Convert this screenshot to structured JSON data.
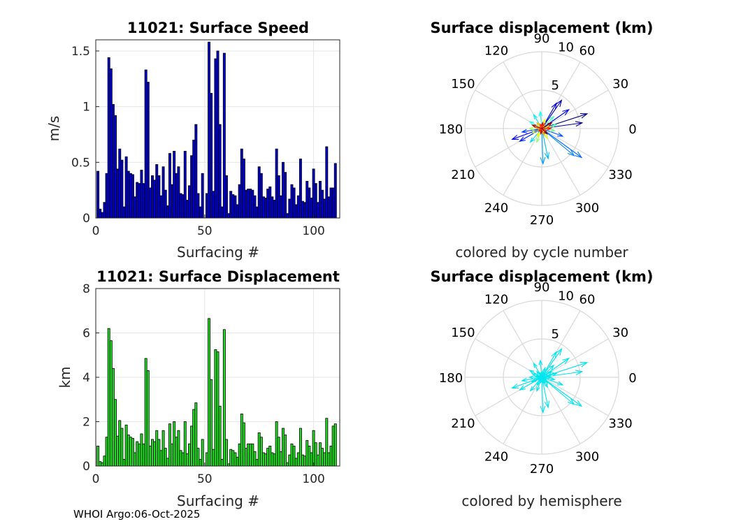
{
  "footer": "WHOI Argo:06-Oct-2025",
  "chart_data": [
    {
      "type": "bar",
      "title": "11021: Surface Speed",
      "xlabel": "Surfacing #",
      "ylabel": "m/s",
      "xlim": [
        0,
        112
      ],
      "ylim": [
        0,
        1.6
      ],
      "xticks": [
        0,
        50,
        100
      ],
      "yticks": [
        0,
        0.5,
        1,
        1.5
      ],
      "grid": true,
      "bar_color": "#0000cc",
      "x": [
        1,
        2,
        3,
        4,
        5,
        6,
        7,
        8,
        9,
        10,
        11,
        12,
        13,
        14,
        15,
        16,
        17,
        18,
        19,
        20,
        21,
        22,
        23,
        24,
        25,
        26,
        27,
        28,
        29,
        30,
        31,
        32,
        33,
        34,
        35,
        36,
        37,
        38,
        39,
        40,
        41,
        42,
        43,
        44,
        45,
        46,
        47,
        48,
        49,
        51,
        52,
        53,
        54,
        55,
        56,
        57,
        58,
        59,
        60,
        61,
        62,
        63,
        64,
        65,
        66,
        67,
        68,
        69,
        70,
        71,
        72,
        73,
        74,
        75,
        76,
        77,
        78,
        79,
        80,
        81,
        82,
        83,
        84,
        85,
        86,
        87,
        88,
        89,
        90,
        91,
        92,
        93,
        94,
        95,
        96,
        97,
        98,
        99,
        100,
        101,
        102,
        103,
        104,
        105,
        106,
        107,
        108,
        109,
        110
      ],
      "values": [
        0.42,
        0.08,
        0.05,
        0.14,
        0.4,
        1.44,
        1.34,
        1.02,
        0.92,
        0.44,
        0.62,
        0.52,
        0.1,
        0.55,
        0.42,
        0.4,
        0.39,
        0.19,
        0.32,
        0.31,
        0.43,
        0.31,
        1.33,
        1.22,
        0.27,
        0.38,
        0.34,
        0.48,
        0.38,
        0.2,
        0.46,
        0.25,
        0.11,
        0.58,
        0.3,
        0.6,
        0.4,
        0.46,
        0.22,
        0.21,
        0.6,
        0.16,
        0.29,
        0.56,
        0.7,
        0.84,
        0.22,
        0.1,
        0.4,
        0.22,
        1.58,
        1.12,
        0.24,
        1.43,
        1.5,
        0.84,
        0.1,
        1.48,
        0.38,
        0.04,
        0.24,
        0.21,
        0.2,
        0.12,
        0.3,
        0.62,
        0.53,
        0.25,
        0.26,
        0.26,
        0.25,
        0.2,
        0.1,
        0.46,
        0.4,
        0.19,
        0.18,
        0.26,
        0.28,
        0.19,
        0.16,
        0.62,
        0.38,
        0.2,
        0.5,
        0.41,
        0.04,
        0.17,
        0.3,
        0.27,
        0.12,
        0.2,
        0.53,
        0.15,
        0.14,
        0.33,
        0.27,
        0.18,
        0.44,
        0.31,
        0.14,
        0.33,
        0.25,
        0.17,
        0.64,
        0.19,
        0.27,
        0.27,
        0.49
      ],
      "gaps": [
        50
      ]
    },
    {
      "type": "bar",
      "title": "11021: Surface Displacement",
      "xlabel": "Surfacing #",
      "ylabel": "km",
      "xlim": [
        0,
        112
      ],
      "ylim": [
        0,
        8
      ],
      "xticks": [
        0,
        50,
        100
      ],
      "yticks": [
        0,
        2,
        4,
        6,
        8
      ],
      "grid": true,
      "bar_color": "#22dd22",
      "x": [
        1,
        2,
        3,
        4,
        5,
        6,
        7,
        8,
        9,
        10,
        11,
        12,
        13,
        14,
        15,
        16,
        17,
        18,
        19,
        20,
        21,
        22,
        23,
        24,
        25,
        26,
        27,
        28,
        29,
        30,
        31,
        32,
        33,
        34,
        35,
        36,
        37,
        38,
        39,
        40,
        41,
        42,
        43,
        44,
        45,
        46,
        47,
        48,
        49,
        51,
        52,
        53,
        54,
        55,
        56,
        57,
        58,
        59,
        60,
        61,
        62,
        63,
        64,
        65,
        66,
        67,
        68,
        69,
        70,
        71,
        72,
        73,
        74,
        75,
        76,
        77,
        78,
        79,
        80,
        81,
        82,
        83,
        84,
        85,
        86,
        87,
        88,
        89,
        90,
        91,
        92,
        93,
        94,
        95,
        96,
        97,
        98,
        99,
        100,
        101,
        102,
        103,
        104,
        105,
        106,
        107,
        108,
        109,
        110
      ],
      "values": [
        0.9,
        0.2,
        0.15,
        0.45,
        1.3,
        6.2,
        5.65,
        4.4,
        3.0,
        1.35,
        2.05,
        1.7,
        0.3,
        1.85,
        1.4,
        1.3,
        1.25,
        0.6,
        1.1,
        1.0,
        1.45,
        1.0,
        4.85,
        4.3,
        0.9,
        1.2,
        1.1,
        1.6,
        1.2,
        0.7,
        1.6,
        0.8,
        0.35,
        1.9,
        1.0,
        2.0,
        1.3,
        1.6,
        0.7,
        0.6,
        2.0,
        0.55,
        1.0,
        1.8,
        2.55,
        2.85,
        0.8,
        0.3,
        1.2,
        0.6,
        6.65,
        3.9,
        0.75,
        5.25,
        5.15,
        2.7,
        0.3,
        6.15,
        1.2,
        0.1,
        0.75,
        0.7,
        0.6,
        0.4,
        1.0,
        2.35,
        1.95,
        0.8,
        1.0,
        1.0,
        1.0,
        0.65,
        0.3,
        1.5,
        1.3,
        0.6,
        0.55,
        0.8,
        0.9,
        0.6,
        0.55,
        2.0,
        1.3,
        0.65,
        1.7,
        1.4,
        0.15,
        0.5,
        1.0,
        0.9,
        0.35,
        0.6,
        1.7,
        0.5,
        0.45,
        1.15,
        0.9,
        0.6,
        1.6,
        1.05,
        0.5,
        1.05,
        0.8,
        0.6,
        2.15,
        0.6,
        0.9,
        1.8,
        1.9
      ],
      "gaps": [
        50
      ]
    },
    {
      "type": "polar-compass",
      "title": "Surface displacement (km)",
      "xlabel": "colored by cycle number",
      "rlim": [
        0,
        10
      ],
      "rticks": [
        5,
        10
      ],
      "angle_ticks": [
        0,
        30,
        60,
        90,
        120,
        150,
        180,
        210,
        240,
        270,
        300,
        330
      ],
      "coloring": "cycle",
      "vectors": [
        {
          "deg": 18,
          "r": 6.2
        },
        {
          "deg": 8,
          "r": 5.3
        },
        {
          "deg": 55,
          "r": 4.5
        },
        {
          "deg": 60,
          "r": 3.8
        },
        {
          "deg": 35,
          "r": 4.3
        },
        {
          "deg": 200,
          "r": 4.1
        },
        {
          "deg": 210,
          "r": 3.3
        },
        {
          "deg": 190,
          "r": 2.6
        },
        {
          "deg": 340,
          "r": 2.9
        },
        {
          "deg": 324,
          "r": 6.4
        },
        {
          "deg": 320,
          "r": 5.5
        },
        {
          "deg": 272,
          "r": 4.6
        },
        {
          "deg": 282,
          "r": 4.0
        },
        {
          "deg": 230,
          "r": 2.3
        },
        {
          "deg": 120,
          "r": 2.1
        },
        {
          "deg": 95,
          "r": 2.2
        },
        {
          "deg": 150,
          "r": 1.8
        },
        {
          "deg": 45,
          "r": 2.2
        },
        {
          "deg": 15,
          "r": 2.0
        },
        {
          "deg": 350,
          "r": 1.7
        },
        {
          "deg": 250,
          "r": 1.9
        },
        {
          "deg": 180,
          "r": 1.6
        },
        {
          "deg": 205,
          "r": 1.4
        },
        {
          "deg": 300,
          "r": 1.5
        },
        {
          "deg": 70,
          "r": 1.3
        },
        {
          "deg": 240,
          "r": 1.2
        },
        {
          "deg": 10,
          "r": 1.1
        },
        {
          "deg": 130,
          "r": 1.0
        },
        {
          "deg": 290,
          "r": 0.9
        },
        {
          "deg": 170,
          "r": 0.8
        },
        {
          "deg": 60,
          "r": 0.7
        },
        {
          "deg": 330,
          "r": 0.6
        },
        {
          "deg": 110,
          "r": 0.6
        },
        {
          "deg": 220,
          "r": 0.5
        },
        {
          "deg": 0,
          "r": 1.2
        },
        {
          "deg": 80,
          "r": 0.8
        },
        {
          "deg": 260,
          "r": 0.7
        },
        {
          "deg": 160,
          "r": 1.3
        },
        {
          "deg": 30,
          "r": 1.5
        },
        {
          "deg": 315,
          "r": 1.0
        }
      ]
    },
    {
      "type": "polar-compass",
      "title": "Surface displacement (km)",
      "xlabel": "colored by hemisphere",
      "rlim": [
        0,
        10
      ],
      "rticks": [
        5,
        10
      ],
      "angle_ticks": [
        0,
        30,
        60,
        90,
        120,
        150,
        180,
        210,
        240,
        270,
        300,
        330
      ],
      "coloring": "hemisphere",
      "color": "#00e5ee",
      "vectors": [
        {
          "deg": 18,
          "r": 6.2
        },
        {
          "deg": 8,
          "r": 5.3
        },
        {
          "deg": 55,
          "r": 4.5
        },
        {
          "deg": 60,
          "r": 3.8
        },
        {
          "deg": 35,
          "r": 4.3
        },
        {
          "deg": 200,
          "r": 4.1
        },
        {
          "deg": 210,
          "r": 3.3
        },
        {
          "deg": 190,
          "r": 2.6
        },
        {
          "deg": 340,
          "r": 2.9
        },
        {
          "deg": 324,
          "r": 6.4
        },
        {
          "deg": 320,
          "r": 5.5
        },
        {
          "deg": 272,
          "r": 4.6
        },
        {
          "deg": 282,
          "r": 4.0
        },
        {
          "deg": 230,
          "r": 2.3
        },
        {
          "deg": 120,
          "r": 2.1
        },
        {
          "deg": 95,
          "r": 2.2
        },
        {
          "deg": 150,
          "r": 1.8
        },
        {
          "deg": 45,
          "r": 2.2
        },
        {
          "deg": 15,
          "r": 2.0
        },
        {
          "deg": 350,
          "r": 1.7
        },
        {
          "deg": 250,
          "r": 1.9
        },
        {
          "deg": 180,
          "r": 1.6
        },
        {
          "deg": 205,
          "r": 1.4
        },
        {
          "deg": 300,
          "r": 1.5
        },
        {
          "deg": 70,
          "r": 1.3
        },
        {
          "deg": 240,
          "r": 1.2
        },
        {
          "deg": 10,
          "r": 1.1
        },
        {
          "deg": 130,
          "r": 1.0
        },
        {
          "deg": 290,
          "r": 0.9
        },
        {
          "deg": 170,
          "r": 0.8
        },
        {
          "deg": 60,
          "r": 0.7
        },
        {
          "deg": 330,
          "r": 0.6
        },
        {
          "deg": 110,
          "r": 0.6
        },
        {
          "deg": 220,
          "r": 0.5
        },
        {
          "deg": 0,
          "r": 1.2
        },
        {
          "deg": 80,
          "r": 0.8
        },
        {
          "deg": 260,
          "r": 0.7
        },
        {
          "deg": 160,
          "r": 1.3
        },
        {
          "deg": 30,
          "r": 1.5
        },
        {
          "deg": 315,
          "r": 1.0
        }
      ]
    }
  ]
}
